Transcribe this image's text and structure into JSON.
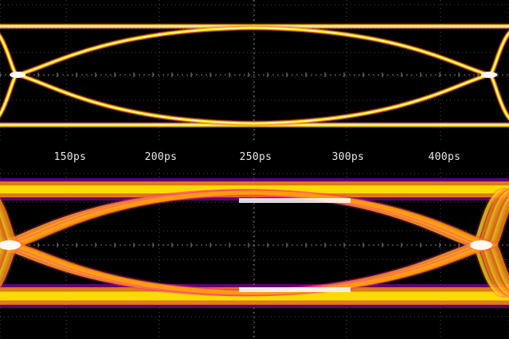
{
  "screen": {
    "time_axis": {
      "tick_labels": [
        "150ps",
        "200ps",
        "250ps",
        "300ps",
        "400ps"
      ]
    },
    "colors": {
      "background": "#000000",
      "grid": "#9a9a9a",
      "trace_hot": "#ffffff",
      "trace_warm": "#ffe600",
      "trace_mid": "#ff9a00",
      "trace_cool": "#ff2a8a",
      "trace_cold": "#b000c8"
    },
    "panels": [
      {
        "name": "top-eye-diagram",
        "quality": "clean"
      },
      {
        "name": "bottom-eye-diagram",
        "quality": "noisy"
      }
    ]
  }
}
